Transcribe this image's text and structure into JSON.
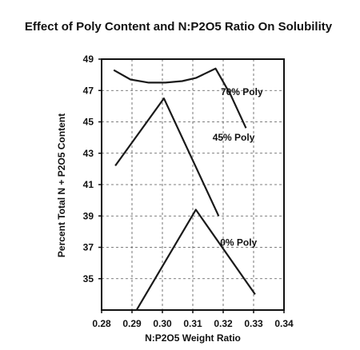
{
  "chart_data": {
    "type": "line",
    "title": "Effect of Poly Content and N:P2O5 Ratio On Solubility",
    "xlabel": "N:P2O5 Weight Ratio",
    "ylabel": "Percent Total N + P2O5 Content",
    "xlim": [
      0.28,
      0.34
    ],
    "ylim": [
      33,
      49
    ],
    "x_ticks": [
      "0.28",
      "0.29",
      "0.30",
      "0.31",
      "0.32",
      "0.33",
      "0.34"
    ],
    "y_ticks": [
      "35",
      "37",
      "39",
      "41",
      "43",
      "45",
      "47",
      "49"
    ],
    "grid": true,
    "series": [
      {
        "name": "70% Poly",
        "x": [
          0.284,
          0.2895,
          0.2955,
          0.301,
          0.3065,
          0.311,
          0.3175,
          0.3225,
          0.3275
        ],
        "y": [
          48.3,
          47.7,
          47.5,
          47.5,
          47.6,
          47.8,
          48.4,
          46.7,
          44.6
        ]
      },
      {
        "name": "45% Poly",
        "x": [
          0.2845,
          0.3005,
          0.3185
        ],
        "y": [
          42.2,
          46.5,
          39.0
        ]
      },
      {
        "name": "0% Poly",
        "x": [
          0.2915,
          0.311,
          0.3305
        ],
        "y": [
          33.0,
          39.4,
          34.0
        ]
      }
    ]
  }
}
